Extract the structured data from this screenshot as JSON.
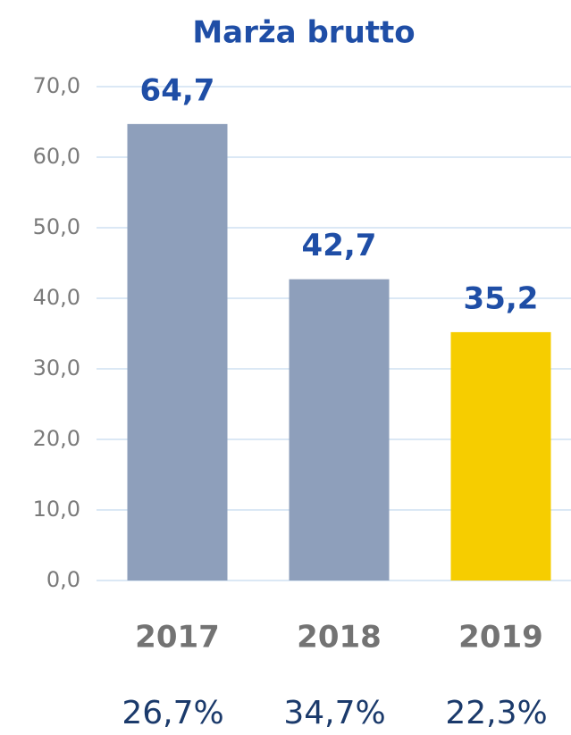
{
  "chart_data": {
    "type": "bar",
    "title": "Marża brutto",
    "categories": [
      "2017",
      "2018",
      "2019"
    ],
    "values": [
      64.7,
      42.7,
      35.2
    ],
    "value_labels": [
      "64,7",
      "42,7",
      "35,2"
    ],
    "colors": [
      "#8e9fbb",
      "#8e9fbb",
      "#f6cd00"
    ],
    "percent_labels": [
      "26,7%",
      "34,7%",
      "22,3%"
    ],
    "ylim": [
      0,
      70
    ],
    "yticks": [
      {
        "value": 0,
        "label": "0,0"
      },
      {
        "value": 10,
        "label": "10,0"
      },
      {
        "value": 20,
        "label": "20,0"
      },
      {
        "value": 30,
        "label": "30,0"
      },
      {
        "value": 40,
        "label": "40,0"
      },
      {
        "value": 50,
        "label": "50,0"
      },
      {
        "value": 60,
        "label": "60,0"
      },
      {
        "value": 70,
        "label": "70,0"
      }
    ],
    "grid": true
  }
}
